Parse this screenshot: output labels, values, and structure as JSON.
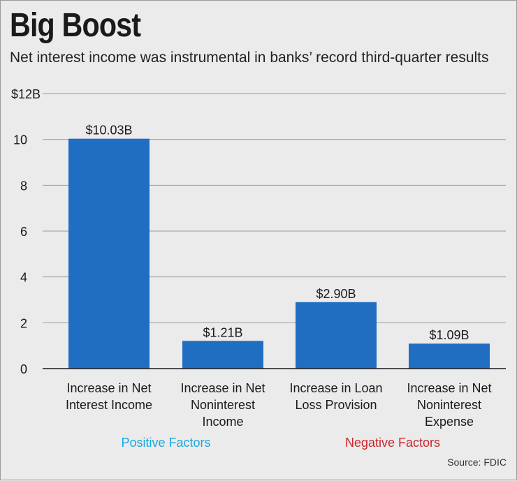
{
  "title": "Big Boost",
  "subtitle": "Net interest income was instrumental in banks’ record third-quarter results",
  "source": "Source: FDIC",
  "colors": {
    "bar": "#1f6ec2",
    "positive_group": "#1aa6dd",
    "negative_group": "#c7252b",
    "grid": "#9a9a9a"
  },
  "groups": [
    {
      "label": "Positive Factors",
      "categories": [
        0,
        1
      ],
      "color": "#1aa6dd"
    },
    {
      "label": "Negative Factors",
      "categories": [
        2,
        3
      ],
      "color": "#c7252b"
    }
  ],
  "chart_data": {
    "type": "bar",
    "title": "Big Boost",
    "subtitle": "Net interest income was instrumental in banks’ record third-quarter results",
    "categories": [
      [
        "Increase in Net",
        "Interest Income"
      ],
      [
        "Increase in Net",
        "Noninterest",
        "Income"
      ],
      [
        "Increase in Loan",
        "Loss Provision"
      ],
      [
        "Increase in Net",
        "Noninterest",
        "Expense"
      ]
    ],
    "values": [
      10.03,
      1.21,
      2.9,
      1.09
    ],
    "data_labels": [
      "$10.03B",
      "$1.21B",
      "$2.90B",
      "$1.09B"
    ],
    "ylim": [
      0,
      12
    ],
    "yticks": [
      0,
      2,
      4,
      6,
      8,
      10,
      12
    ],
    "ytick_labels": [
      "0",
      "2",
      "4",
      "6",
      "8",
      "10",
      "$12B"
    ],
    "xlabel": "",
    "ylabel": "",
    "grid": true
  }
}
